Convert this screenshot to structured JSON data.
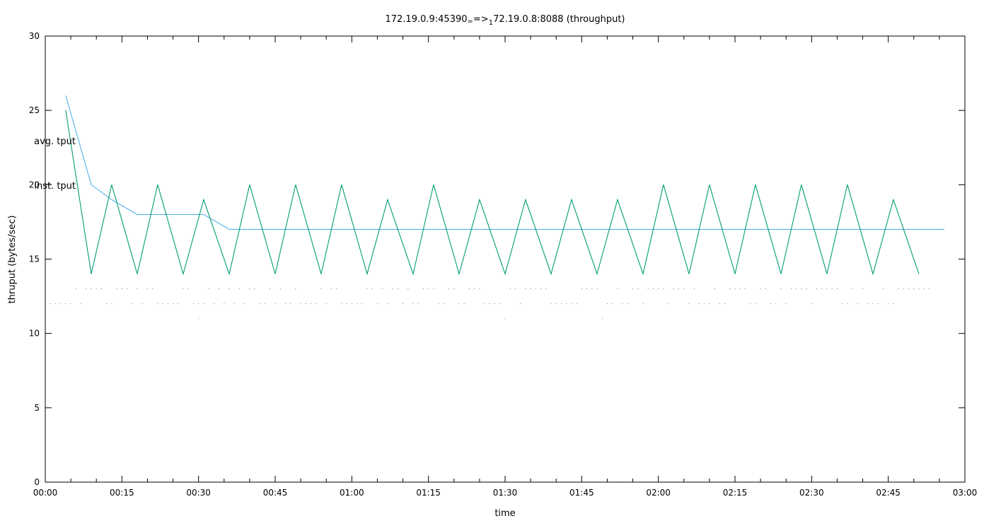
{
  "chart_data": {
    "type": "line",
    "title": "172.19.0.9:45390_==>_172.19.0.8:8088 (throughput)",
    "title_parts": {
      "a": "172.19.0.9:45390",
      "b": "=",
      "c": "=>",
      "d": "1",
      "e": "72.19.0.8:8088 (throughput)"
    },
    "xlabel": "time",
    "ylabel": "thruput (bytes/sec)",
    "xlim": [
      0,
      180
    ],
    "ylim": [
      0,
      30
    ],
    "x_ticks": [
      {
        "v": 0,
        "label": "00:00"
      },
      {
        "v": 15,
        "label": "00:15"
      },
      {
        "v": 30,
        "label": "00:30"
      },
      {
        "v": 45,
        "label": "00:45"
      },
      {
        "v": 60,
        "label": "01:00"
      },
      {
        "v": 75,
        "label": "01:15"
      },
      {
        "v": 90,
        "label": "01:30"
      },
      {
        "v": 105,
        "label": "01:45"
      },
      {
        "v": 120,
        "label": "02:00"
      },
      {
        "v": 135,
        "label": "02:15"
      },
      {
        "v": 150,
        "label": "02:30"
      },
      {
        "v": 165,
        "label": "02:45"
      },
      {
        "v": 180,
        "label": "03:00"
      }
    ],
    "y_ticks": [
      {
        "v": 0,
        "label": "0"
      },
      {
        "v": 5,
        "label": "5"
      },
      {
        "v": 10,
        "label": "10"
      },
      {
        "v": 15,
        "label": "15"
      },
      {
        "v": 20,
        "label": "20"
      },
      {
        "v": 25,
        "label": "25"
      },
      {
        "v": 30,
        "label": "30"
      }
    ],
    "legend_placement": "left",
    "series": [
      {
        "name": "avg. tput",
        "color": "#56b4e9",
        "points": [
          [
            4,
            26
          ],
          [
            9,
            20
          ],
          [
            13,
            19
          ],
          [
            18,
            18
          ],
          [
            22,
            18
          ],
          [
            27,
            18
          ],
          [
            31,
            18
          ],
          [
            36,
            17
          ],
          [
            176,
            17
          ]
        ]
      },
      {
        "name": "inst. tput",
        "color": "#009e73",
        "points": [
          [
            4,
            25
          ],
          [
            9,
            14
          ],
          [
            13,
            20
          ],
          [
            18,
            14
          ],
          [
            22,
            20
          ],
          [
            27,
            14
          ],
          [
            31,
            19
          ],
          [
            36,
            14
          ],
          [
            40,
            20
          ],
          [
            45,
            14
          ],
          [
            49,
            20
          ],
          [
            54,
            14
          ],
          [
            58,
            20
          ],
          [
            63,
            14
          ],
          [
            67,
            19
          ],
          [
            72,
            14
          ],
          [
            76,
            20
          ],
          [
            81,
            14
          ],
          [
            85,
            19
          ],
          [
            90,
            14
          ],
          [
            94,
            19
          ],
          [
            99,
            14
          ],
          [
            103,
            19
          ],
          [
            108,
            14
          ],
          [
            112,
            19
          ],
          [
            117,
            14
          ],
          [
            121,
            20
          ],
          [
            126,
            14
          ],
          [
            130,
            20
          ],
          [
            135,
            14
          ],
          [
            139,
            20
          ],
          [
            144,
            14
          ],
          [
            148,
            20
          ],
          [
            153,
            14
          ],
          [
            157,
            20
          ],
          [
            162,
            14
          ],
          [
            166,
            19
          ],
          [
            171,
            14
          ]
        ]
      }
    ],
    "dots_color": "#777777",
    "dots": [
      [
        1,
        12
      ],
      [
        2,
        12
      ],
      [
        3,
        12
      ],
      [
        4,
        12
      ],
      [
        5,
        12
      ],
      [
        6,
        13
      ],
      [
        7,
        12
      ],
      [
        8,
        13
      ],
      [
        9,
        13
      ],
      [
        10,
        13
      ],
      [
        11,
        13
      ],
      [
        12,
        12
      ],
      [
        13,
        12
      ],
      [
        14,
        13
      ],
      [
        15,
        13
      ],
      [
        16,
        13
      ],
      [
        17,
        12
      ],
      [
        18,
        13
      ],
      [
        19,
        12
      ],
      [
        20,
        13
      ],
      [
        21,
        13
      ],
      [
        22,
        12
      ],
      [
        23,
        12
      ],
      [
        24,
        12
      ],
      [
        25,
        12
      ],
      [
        26,
        12
      ],
      [
        27,
        13
      ],
      [
        28,
        13
      ],
      [
        29,
        12
      ],
      [
        30,
        12
      ],
      [
        30,
        11
      ],
      [
        31,
        12
      ],
      [
        32,
        13
      ],
      [
        33,
        12
      ],
      [
        34,
        13
      ],
      [
        35,
        12
      ],
      [
        36,
        13
      ],
      [
        37,
        12
      ],
      [
        38,
        13
      ],
      [
        39,
        12
      ],
      [
        40,
        13
      ],
      [
        41,
        13
      ],
      [
        42,
        12
      ],
      [
        43,
        12
      ],
      [
        44,
        13
      ],
      [
        45,
        12
      ],
      [
        46,
        13
      ],
      [
        47,
        12
      ],
      [
        48,
        12
      ],
      [
        49,
        13
      ],
      [
        50,
        12
      ],
      [
        51,
        12
      ],
      [
        52,
        12
      ],
      [
        53,
        12
      ],
      [
        54,
        13
      ],
      [
        55,
        12
      ],
      [
        56,
        13
      ],
      [
        57,
        13
      ],
      [
        58,
        12
      ],
      [
        59,
        12
      ],
      [
        60,
        12
      ],
      [
        61,
        12
      ],
      [
        62,
        12
      ],
      [
        63,
        13
      ],
      [
        64,
        13
      ],
      [
        65,
        12
      ],
      [
        66,
        13
      ],
      [
        67,
        12
      ],
      [
        68,
        13
      ],
      [
        69,
        13
      ],
      [
        70,
        12
      ],
      [
        71,
        13
      ],
      [
        72,
        12
      ],
      [
        73,
        12
      ],
      [
        74,
        13
      ],
      [
        75,
        13
      ],
      [
        76,
        13
      ],
      [
        77,
        12
      ],
      [
        78,
        12
      ],
      [
        79,
        13
      ],
      [
        80,
        13
      ],
      [
        81,
        12
      ],
      [
        82,
        12
      ],
      [
        83,
        13
      ],
      [
        84,
        13
      ],
      [
        85,
        13
      ],
      [
        86,
        12
      ],
      [
        87,
        12
      ],
      [
        88,
        12
      ],
      [
        89,
        12
      ],
      [
        90,
        11
      ],
      [
        91,
        13
      ],
      [
        92,
        13
      ],
      [
        93,
        12
      ],
      [
        94,
        13
      ],
      [
        95,
        13
      ],
      [
        96,
        13
      ],
      [
        97,
        13
      ],
      [
        98,
        13
      ],
      [
        99,
        12
      ],
      [
        100,
        12
      ],
      [
        101,
        12
      ],
      [
        102,
        12
      ],
      [
        103,
        12
      ],
      [
        104,
        12
      ],
      [
        105,
        13
      ],
      [
        106,
        13
      ],
      [
        107,
        13
      ],
      [
        108,
        13
      ],
      [
        109,
        11
      ],
      [
        110,
        12
      ],
      [
        111,
        12
      ],
      [
        112,
        13
      ],
      [
        113,
        12
      ],
      [
        114,
        12
      ],
      [
        115,
        13
      ],
      [
        116,
        13
      ],
      [
        117,
        12
      ],
      [
        118,
        13
      ],
      [
        119,
        13
      ],
      [
        120,
        13
      ],
      [
        121,
        13
      ],
      [
        122,
        12
      ],
      [
        123,
        13
      ],
      [
        124,
        13
      ],
      [
        125,
        13
      ],
      [
        126,
        12
      ],
      [
        127,
        13
      ],
      [
        128,
        12
      ],
      [
        129,
        12
      ],
      [
        130,
        12
      ],
      [
        131,
        13
      ],
      [
        132,
        12
      ],
      [
        133,
        12
      ],
      [
        134,
        13
      ],
      [
        135,
        13
      ],
      [
        136,
        13
      ],
      [
        137,
        13
      ],
      [
        138,
        12
      ],
      [
        139,
        12
      ],
      [
        140,
        13
      ],
      [
        141,
        13
      ],
      [
        142,
        12
      ],
      [
        143,
        12
      ],
      [
        144,
        13
      ],
      [
        145,
        12
      ],
      [
        146,
        13
      ],
      [
        147,
        13
      ],
      [
        148,
        13
      ],
      [
        149,
        13
      ],
      [
        150,
        12
      ],
      [
        151,
        13
      ],
      [
        152,
        13
      ],
      [
        153,
        13
      ],
      [
        154,
        13
      ],
      [
        155,
        13
      ],
      [
        156,
        12
      ],
      [
        157,
        12
      ],
      [
        158,
        13
      ],
      [
        159,
        12
      ],
      [
        160,
        13
      ],
      [
        161,
        12
      ],
      [
        162,
        12
      ],
      [
        163,
        12
      ],
      [
        164,
        13
      ],
      [
        165,
        12
      ],
      [
        166,
        12
      ],
      [
        167,
        13
      ],
      [
        168,
        13
      ],
      [
        169,
        13
      ],
      [
        170,
        13
      ],
      [
        171,
        13
      ],
      [
        172,
        13
      ],
      [
        173,
        13
      ]
    ]
  }
}
